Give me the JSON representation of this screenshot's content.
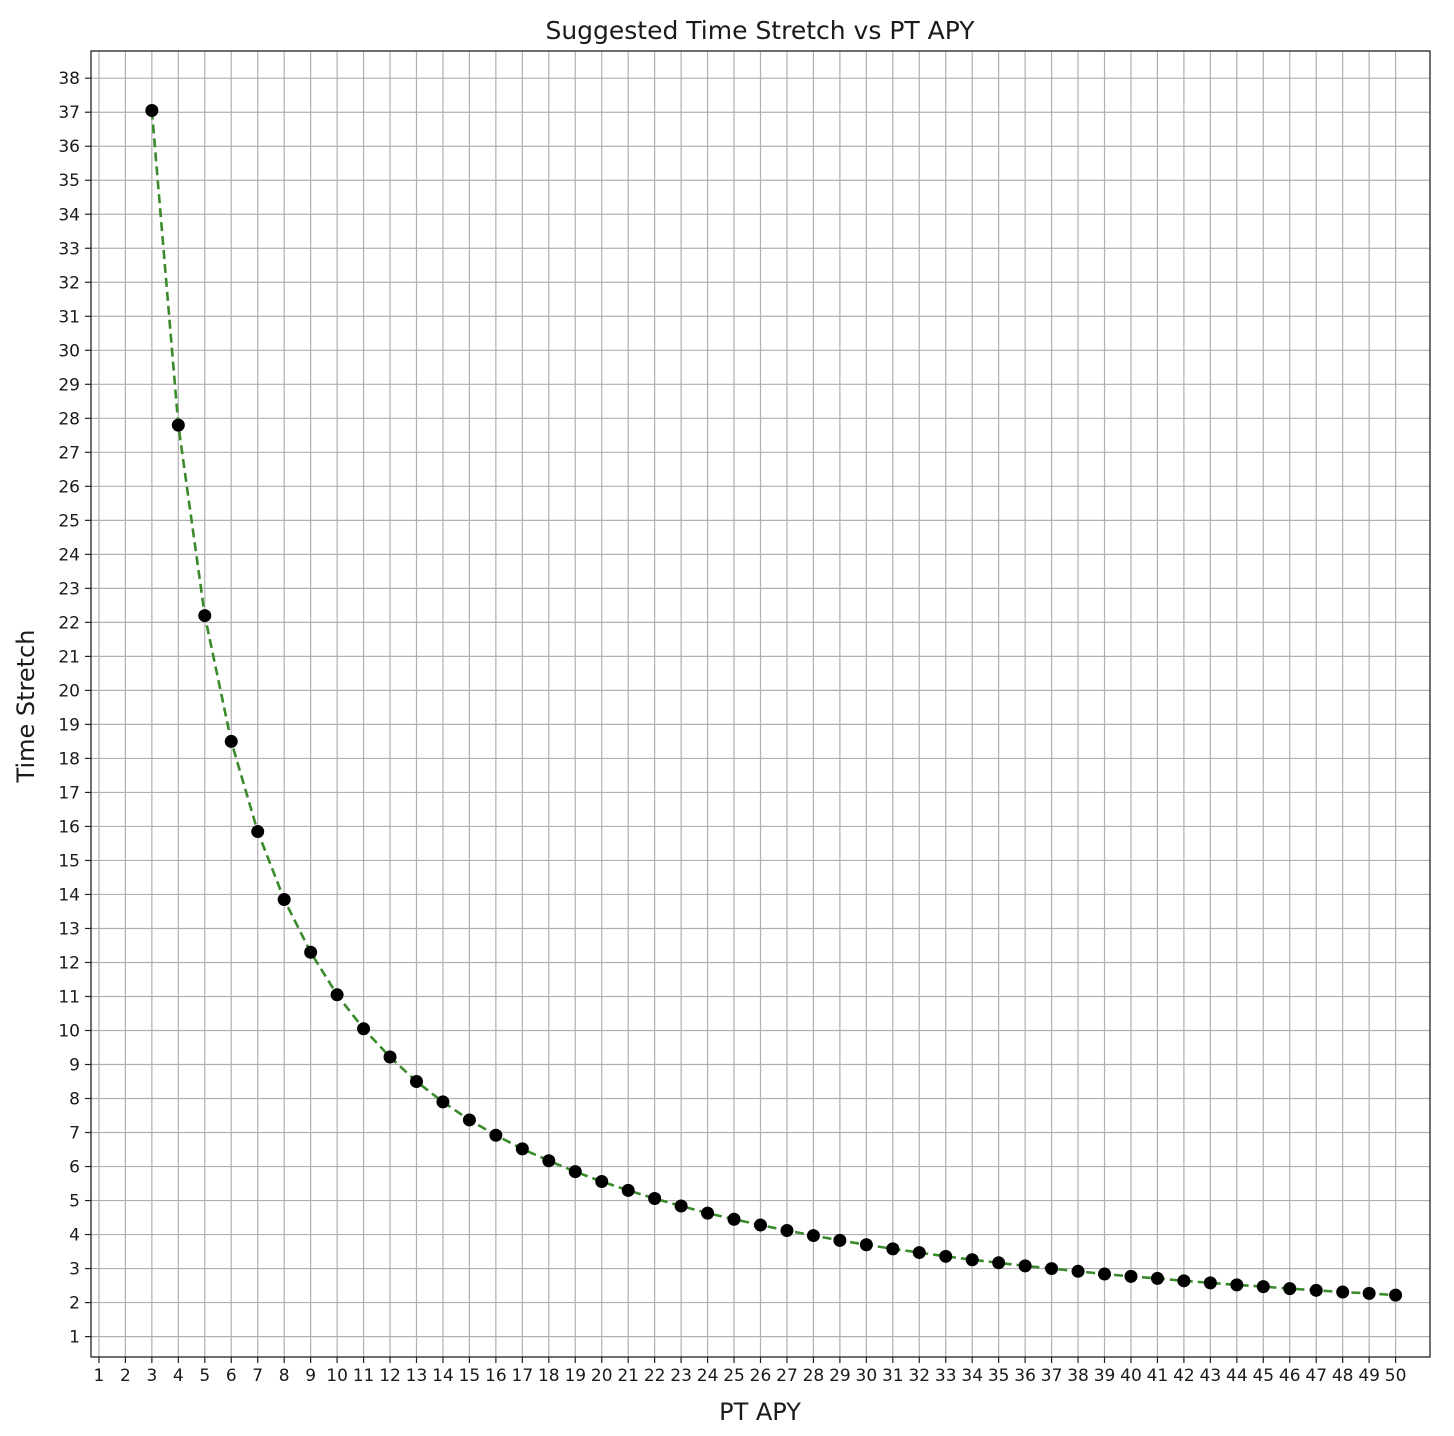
{
  "chart_data": {
    "type": "line",
    "title": "Suggested Time Stretch vs PT APY",
    "xlabel": "PT APY",
    "ylabel": "Time Stretch",
    "xlim": [
      0.7,
      51.3
    ],
    "ylim": [
      0.4,
      38.8
    ],
    "xticks": [
      1,
      2,
      3,
      4,
      5,
      6,
      7,
      8,
      9,
      10,
      11,
      12,
      13,
      14,
      15,
      16,
      17,
      18,
      19,
      20,
      21,
      22,
      23,
      24,
      25,
      26,
      27,
      28,
      29,
      30,
      31,
      32,
      33,
      34,
      35,
      36,
      37,
      38,
      39,
      40,
      41,
      42,
      43,
      44,
      45,
      46,
      47,
      48,
      49,
      50
    ],
    "yticks": [
      1,
      2,
      3,
      4,
      5,
      6,
      7,
      8,
      9,
      10,
      11,
      12,
      13,
      14,
      15,
      16,
      17,
      18,
      19,
      20,
      21,
      22,
      23,
      24,
      25,
      26,
      27,
      28,
      29,
      30,
      31,
      32,
      33,
      34,
      35,
      36,
      37,
      38
    ],
    "grid": true,
    "legend": "none",
    "series": [
      {
        "line_color": "#3a8a2c",
        "line_style": "dashed",
        "marker_color": "#000000",
        "x": [
          3,
          4,
          5,
          6,
          7,
          8,
          9,
          10,
          11,
          12,
          13,
          14,
          15,
          16,
          17,
          18,
          19,
          20,
          21,
          22,
          23,
          24,
          25,
          26,
          27,
          28,
          29,
          30,
          31,
          32,
          33,
          34,
          35,
          36,
          37,
          38,
          39,
          40,
          41,
          42,
          43,
          44,
          45,
          46,
          47,
          48,
          49,
          50
        ],
        "y": [
          37.05,
          27.8,
          22.2,
          18.5,
          15.85,
          13.85,
          12.3,
          11.05,
          10.05,
          9.22,
          8.5,
          7.9,
          7.37,
          6.92,
          6.52,
          6.17,
          5.85,
          5.56,
          5.3,
          5.06,
          4.84,
          4.63,
          4.45,
          4.28,
          4.12,
          3.97,
          3.83,
          3.7,
          3.58,
          3.47,
          3.36,
          3.26,
          3.17,
          3.08,
          3.0,
          2.92,
          2.84,
          2.77,
          2.71,
          2.64,
          2.58,
          2.52,
          2.47,
          2.41,
          2.36,
          2.31,
          2.27,
          2.22
        ]
      }
    ]
  },
  "colors": {
    "grid": "#b0b0b0",
    "frame": "#222222"
  }
}
